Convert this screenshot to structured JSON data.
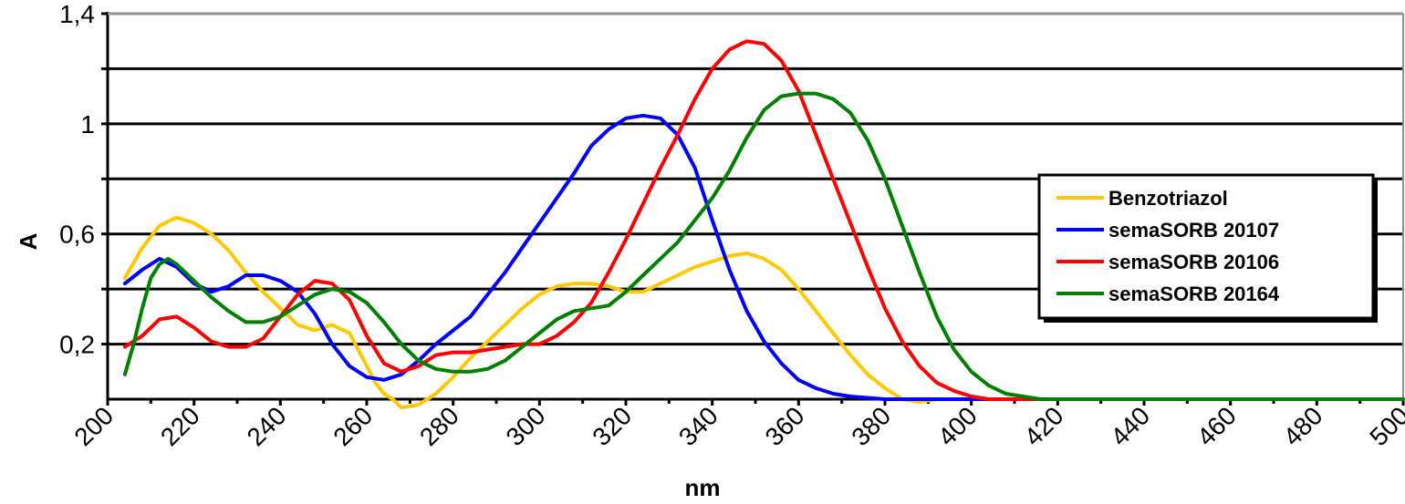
{
  "chart_data": {
    "type": "line",
    "title": "",
    "xlabel": "nm",
    "ylabel": "A",
    "xlim": [
      200,
      500
    ],
    "ylim": [
      0,
      1.4
    ],
    "x_ticks": [
      200,
      220,
      240,
      260,
      280,
      300,
      320,
      340,
      360,
      380,
      400,
      420,
      440,
      460,
      480,
      500
    ],
    "y_tick_labels": [
      {
        "value": 1.4,
        "label": "1,4"
      },
      {
        "value": 1.0,
        "label": "1"
      },
      {
        "value": 0.6,
        "label": "0,6"
      },
      {
        "value": 0.2,
        "label": "0,2"
      }
    ],
    "gridlines_y": [
      0.2,
      0.4,
      0.6,
      0.8,
      1.0,
      1.2,
      1.4
    ],
    "grid": true,
    "legend_position": "right",
    "series": [
      {
        "name": "Benzotriazol",
        "color": "#FFC800",
        "points": [
          [
            204,
            0.44
          ],
          [
            208,
            0.55
          ],
          [
            212,
            0.63
          ],
          [
            216,
            0.66
          ],
          [
            220,
            0.64
          ],
          [
            224,
            0.6
          ],
          [
            228,
            0.54
          ],
          [
            232,
            0.46
          ],
          [
            236,
            0.39
          ],
          [
            240,
            0.33
          ],
          [
            244,
            0.27
          ],
          [
            248,
            0.25
          ],
          [
            252,
            0.27
          ],
          [
            256,
            0.24
          ],
          [
            260,
            0.12
          ],
          [
            262,
            0.06
          ],
          [
            264,
            0.02
          ],
          [
            266,
            0.0
          ],
          [
            268,
            -0.03
          ],
          [
            272,
            -0.02
          ],
          [
            276,
            0.02
          ],
          [
            280,
            0.08
          ],
          [
            284,
            0.15
          ],
          [
            288,
            0.21
          ],
          [
            292,
            0.27
          ],
          [
            296,
            0.33
          ],
          [
            300,
            0.38
          ],
          [
            304,
            0.41
          ],
          [
            308,
            0.42
          ],
          [
            312,
            0.42
          ],
          [
            316,
            0.41
          ],
          [
            320,
            0.39
          ],
          [
            324,
            0.39
          ],
          [
            328,
            0.42
          ],
          [
            332,
            0.45
          ],
          [
            336,
            0.48
          ],
          [
            340,
            0.5
          ],
          [
            344,
            0.52
          ],
          [
            348,
            0.53
          ],
          [
            352,
            0.51
          ],
          [
            356,
            0.47
          ],
          [
            360,
            0.4
          ],
          [
            364,
            0.32
          ],
          [
            368,
            0.24
          ],
          [
            372,
            0.16
          ],
          [
            376,
            0.09
          ],
          [
            380,
            0.04
          ],
          [
            384,
            0.0
          ],
          [
            388,
            -0.01
          ],
          [
            392,
            0.0
          ],
          [
            400,
            0.0
          ],
          [
            500,
            0.0
          ]
        ]
      },
      {
        "name": "semaSORB 20107",
        "color": "#0000FF",
        "points": [
          [
            204,
            0.42
          ],
          [
            208,
            0.47
          ],
          [
            212,
            0.51
          ],
          [
            216,
            0.48
          ],
          [
            220,
            0.42
          ],
          [
            224,
            0.39
          ],
          [
            228,
            0.41
          ],
          [
            232,
            0.45
          ],
          [
            236,
            0.45
          ],
          [
            240,
            0.43
          ],
          [
            244,
            0.39
          ],
          [
            248,
            0.31
          ],
          [
            252,
            0.2
          ],
          [
            256,
            0.12
          ],
          [
            260,
            0.08
          ],
          [
            264,
            0.07
          ],
          [
            268,
            0.09
          ],
          [
            272,
            0.14
          ],
          [
            276,
            0.2
          ],
          [
            280,
            0.25
          ],
          [
            284,
            0.3
          ],
          [
            288,
            0.38
          ],
          [
            292,
            0.46
          ],
          [
            296,
            0.55
          ],
          [
            300,
            0.64
          ],
          [
            304,
            0.73
          ],
          [
            308,
            0.82
          ],
          [
            312,
            0.92
          ],
          [
            316,
            0.98
          ],
          [
            320,
            1.02
          ],
          [
            324,
            1.03
          ],
          [
            328,
            1.02
          ],
          [
            332,
            0.96
          ],
          [
            336,
            0.84
          ],
          [
            340,
            0.65
          ],
          [
            344,
            0.47
          ],
          [
            348,
            0.32
          ],
          [
            352,
            0.21
          ],
          [
            356,
            0.13
          ],
          [
            360,
            0.07
          ],
          [
            364,
            0.04
          ],
          [
            368,
            0.02
          ],
          [
            372,
            0.01
          ],
          [
            380,
            0.0
          ],
          [
            500,
            0.0
          ]
        ]
      },
      {
        "name": "semaSORB 20106",
        "color": "#FF0000",
        "points": [
          [
            204,
            0.19
          ],
          [
            208,
            0.23
          ],
          [
            212,
            0.29
          ],
          [
            216,
            0.3
          ],
          [
            220,
            0.26
          ],
          [
            224,
            0.21
          ],
          [
            228,
            0.19
          ],
          [
            232,
            0.19
          ],
          [
            236,
            0.22
          ],
          [
            240,
            0.3
          ],
          [
            244,
            0.38
          ],
          [
            248,
            0.43
          ],
          [
            252,
            0.42
          ],
          [
            256,
            0.36
          ],
          [
            260,
            0.23
          ],
          [
            264,
            0.13
          ],
          [
            268,
            0.1
          ],
          [
            272,
            0.12
          ],
          [
            276,
            0.16
          ],
          [
            280,
            0.17
          ],
          [
            284,
            0.17
          ],
          [
            288,
            0.18
          ],
          [
            292,
            0.19
          ],
          [
            296,
            0.2
          ],
          [
            300,
            0.2
          ],
          [
            304,
            0.23
          ],
          [
            308,
            0.28
          ],
          [
            312,
            0.35
          ],
          [
            316,
            0.46
          ],
          [
            320,
            0.58
          ],
          [
            324,
            0.71
          ],
          [
            328,
            0.84
          ],
          [
            332,
            0.96
          ],
          [
            336,
            1.09
          ],
          [
            340,
            1.2
          ],
          [
            344,
            1.27
          ],
          [
            348,
            1.3
          ],
          [
            352,
            1.29
          ],
          [
            356,
            1.23
          ],
          [
            360,
            1.12
          ],
          [
            364,
            0.96
          ],
          [
            368,
            0.8
          ],
          [
            372,
            0.64
          ],
          [
            376,
            0.48
          ],
          [
            380,
            0.33
          ],
          [
            384,
            0.21
          ],
          [
            388,
            0.12
          ],
          [
            392,
            0.06
          ],
          [
            396,
            0.03
          ],
          [
            400,
            0.01
          ],
          [
            404,
            0.0
          ],
          [
            500,
            0.0
          ]
        ]
      },
      {
        "name": "semaSORB 20164",
        "color": "#008000",
        "points": [
          [
            204,
            0.09
          ],
          [
            206,
            0.2
          ],
          [
            208,
            0.33
          ],
          [
            210,
            0.44
          ],
          [
            212,
            0.49
          ],
          [
            214,
            0.51
          ],
          [
            216,
            0.49
          ],
          [
            220,
            0.43
          ],
          [
            224,
            0.37
          ],
          [
            228,
            0.32
          ],
          [
            232,
            0.28
          ],
          [
            236,
            0.28
          ],
          [
            240,
            0.3
          ],
          [
            244,
            0.34
          ],
          [
            248,
            0.38
          ],
          [
            252,
            0.4
          ],
          [
            256,
            0.39
          ],
          [
            260,
            0.35
          ],
          [
            264,
            0.28
          ],
          [
            268,
            0.2
          ],
          [
            272,
            0.14
          ],
          [
            276,
            0.11
          ],
          [
            280,
            0.1
          ],
          [
            284,
            0.1
          ],
          [
            288,
            0.11
          ],
          [
            292,
            0.14
          ],
          [
            296,
            0.19
          ],
          [
            300,
            0.24
          ],
          [
            304,
            0.29
          ],
          [
            308,
            0.32
          ],
          [
            312,
            0.33
          ],
          [
            316,
            0.34
          ],
          [
            320,
            0.39
          ],
          [
            324,
            0.45
          ],
          [
            328,
            0.51
          ],
          [
            332,
            0.57
          ],
          [
            336,
            0.65
          ],
          [
            340,
            0.73
          ],
          [
            344,
            0.83
          ],
          [
            348,
            0.95
          ],
          [
            352,
            1.05
          ],
          [
            356,
            1.1
          ],
          [
            360,
            1.11
          ],
          [
            364,
            1.11
          ],
          [
            368,
            1.09
          ],
          [
            372,
            1.04
          ],
          [
            376,
            0.94
          ],
          [
            380,
            0.8
          ],
          [
            384,
            0.63
          ],
          [
            388,
            0.46
          ],
          [
            392,
            0.3
          ],
          [
            396,
            0.18
          ],
          [
            400,
            0.1
          ],
          [
            404,
            0.05
          ],
          [
            408,
            0.02
          ],
          [
            412,
            0.01
          ],
          [
            416,
            0.0
          ],
          [
            500,
            0.0
          ]
        ]
      }
    ]
  }
}
